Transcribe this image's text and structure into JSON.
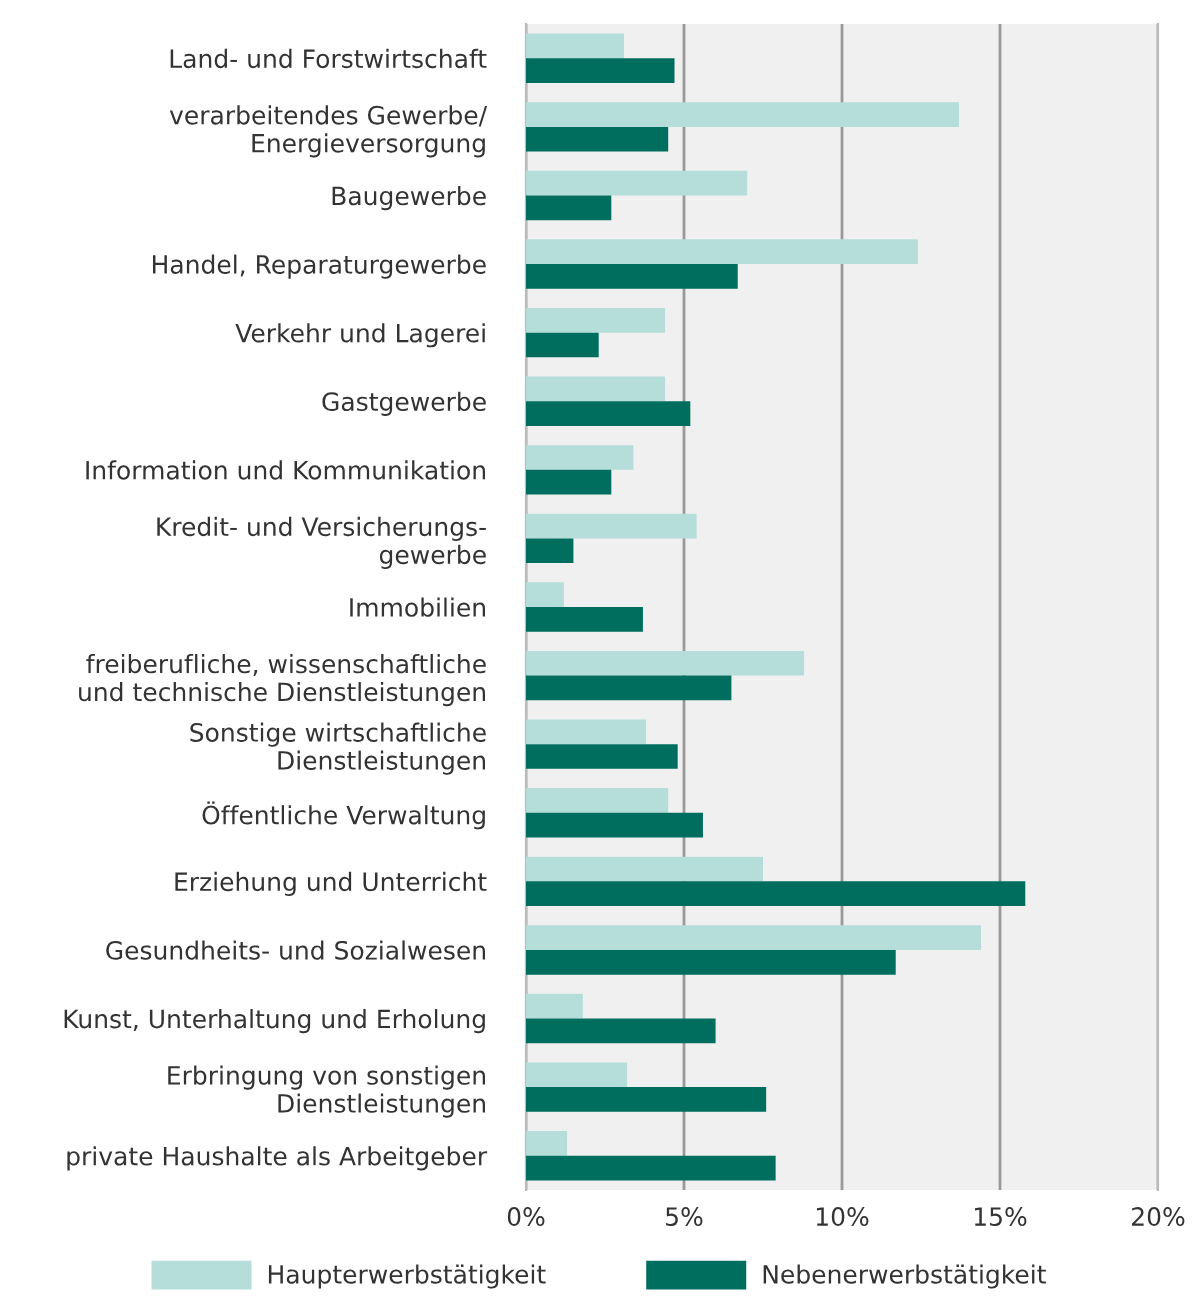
{
  "chart_data": {
    "type": "bar",
    "orientation": "horizontal",
    "categories": [
      "Land- und Forstwirtschaft",
      "verarbeitendes Gewerbe/\nEnergieversorgung",
      "Baugewerbe",
      "Handel, Reparaturgewerbe",
      "Verkehr und Lagerei",
      "Gastgewerbe",
      "Information und Kommunikation",
      "Kredit- und Versicherungs-\ngewerbe",
      "Immobilien",
      "freiberufliche, wissenschaftliche\nund technische Dienstleistungen",
      "Sonstige wirtschaftliche\nDienstleistungen",
      "Öffentliche Verwaltung",
      "Erziehung und Unterricht",
      "Gesundheits- und Sozialwesen",
      "Kunst, Unterhaltung und Erholung",
      "Erbringung von sonstigen\nDienstleistungen",
      "private Haushalte als Arbeitgeber"
    ],
    "series": [
      {
        "name": "Haupterwerbstätigkeit",
        "color": "#b5dedb",
        "values": [
          3.1,
          13.7,
          7.0,
          12.4,
          4.4,
          4.4,
          3.4,
          5.4,
          1.2,
          8.8,
          3.8,
          4.5,
          7.5,
          14.4,
          1.8,
          3.2,
          1.3
        ]
      },
      {
        "name": "Nebenerwerbstätigkeit",
        "color": "#006e5f",
        "values": [
          4.7,
          4.5,
          2.7,
          6.7,
          2.3,
          5.2,
          2.7,
          1.5,
          3.7,
          6.5,
          4.8,
          5.6,
          15.8,
          11.7,
          6.0,
          7.6,
          7.9
        ]
      }
    ],
    "xlim": [
      0,
      20
    ],
    "xticks": [
      {
        "value": 0,
        "label": "0%"
      },
      {
        "value": 5,
        "label": "5%"
      },
      {
        "value": 10,
        "label": "10%"
      },
      {
        "value": 15,
        "label": "15%"
      },
      {
        "value": 20,
        "label": "20%"
      }
    ],
    "grid": "x",
    "legend": "bottom"
  }
}
